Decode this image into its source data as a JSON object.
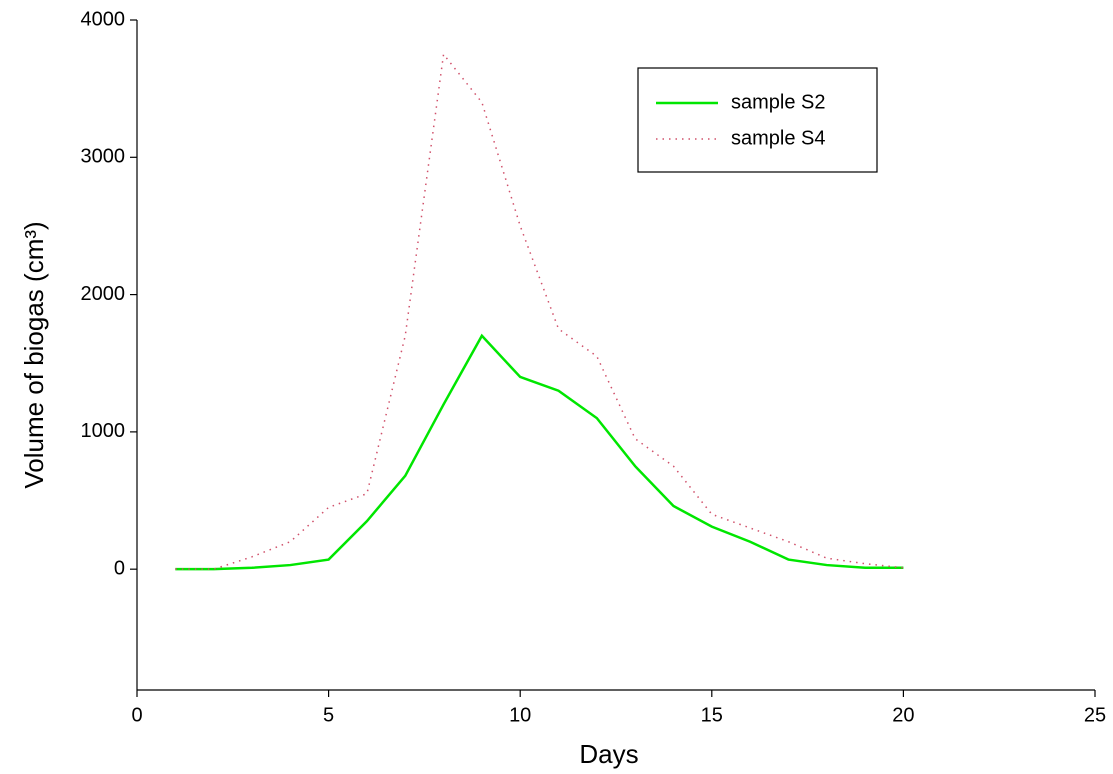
{
  "chart_data": {
    "type": "line",
    "x_label": "Days",
    "y_label": "Volume of biogas (cm³)",
    "x": [
      1,
      2,
      3,
      4,
      5,
      6,
      7,
      8,
      9,
      10,
      11,
      12,
      13,
      14,
      15,
      16,
      17,
      18,
      19,
      20
    ],
    "series": [
      {
        "name": "sample S2",
        "color": "#00e600",
        "dash": "solid",
        "values": [
          0,
          0,
          10,
          30,
          70,
          350,
          680,
          1200,
          1700,
          1400,
          1300,
          1100,
          750,
          460,
          310,
          200,
          70,
          30,
          10,
          10
        ]
      },
      {
        "name": "sample S4",
        "color": "#d0506a",
        "dash": "dotted",
        "values": [
          0,
          0,
          90,
          200,
          450,
          550,
          1700,
          3750,
          3400,
          2500,
          1750,
          1550,
          950,
          750,
          400,
          300,
          200,
          80,
          40,
          10
        ]
      }
    ],
    "xlim": [
      0,
      25
    ],
    "xticks": [
      0,
      5,
      10,
      15,
      20,
      25
    ],
    "ylim": [
      -880,
      4000
    ],
    "yticks": [
      0,
      1000,
      2000,
      3000,
      4000
    ],
    "legend": "upper-right"
  }
}
